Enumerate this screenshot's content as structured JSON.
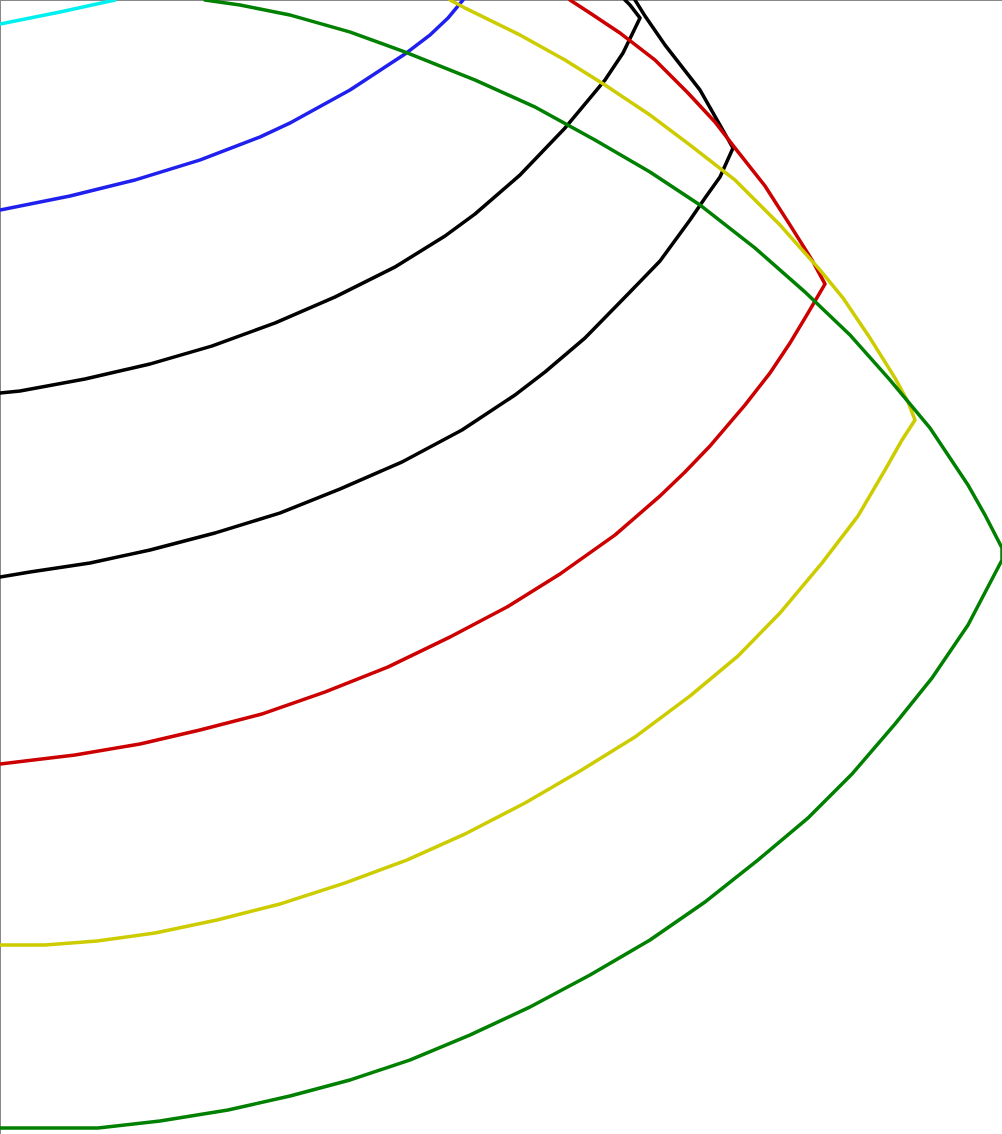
{
  "diagram": {
    "type": "nested-curves",
    "curves": [
      {
        "name": "cyan-curve",
        "color": "#00f0f0"
      },
      {
        "name": "blue-curve",
        "color": "#2020ee"
      },
      {
        "name": "black-curve-inner",
        "color": "#000000"
      },
      {
        "name": "black-curve-outer",
        "color": "#000000"
      },
      {
        "name": "red-curve",
        "color": "#cc0000"
      },
      {
        "name": "yellow-curve",
        "color": "#cccc00"
      },
      {
        "name": "green-curve",
        "color": "#008000"
      }
    ]
  }
}
